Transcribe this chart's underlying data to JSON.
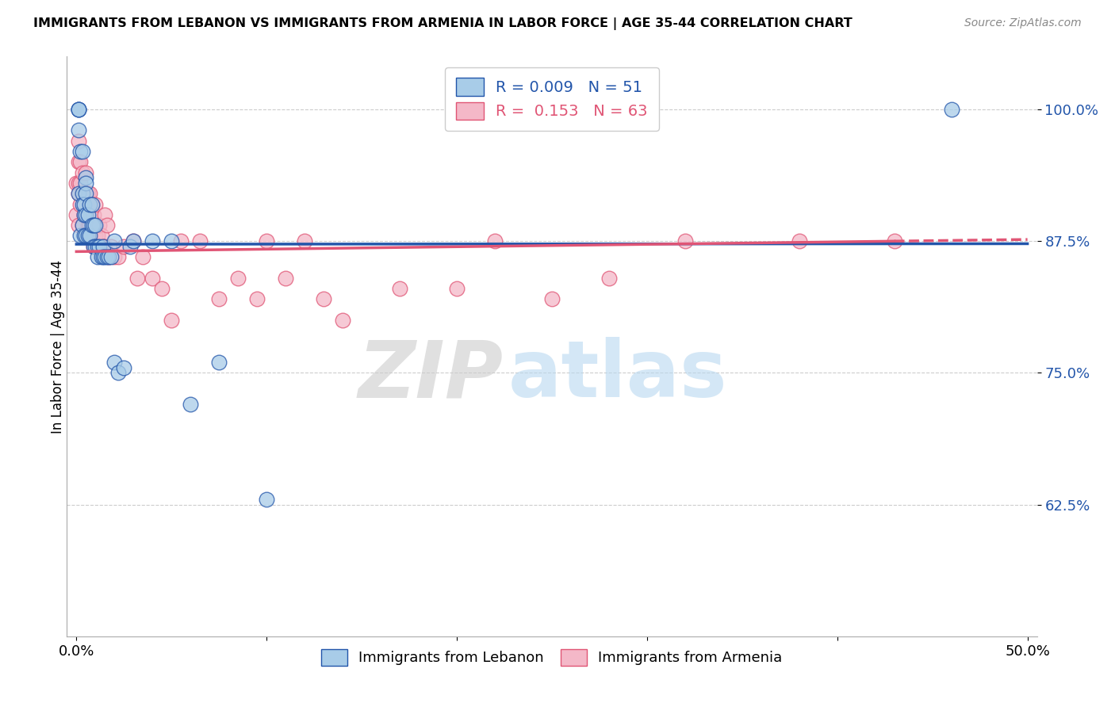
{
  "title": "IMMIGRANTS FROM LEBANON VS IMMIGRANTS FROM ARMENIA IN LABOR FORCE | AGE 35-44 CORRELATION CHART",
  "source": "Source: ZipAtlas.com",
  "ylabel": "In Labor Force | Age 35-44",
  "xlim": [
    -0.005,
    0.505
  ],
  "ylim": [
    0.5,
    1.05
  ],
  "yticks": [
    0.625,
    0.75,
    0.875,
    1.0
  ],
  "ytick_labels": [
    "62.5%",
    "75.0%",
    "87.5%",
    "100.0%"
  ],
  "xticks": [
    0.0,
    0.1,
    0.2,
    0.3,
    0.4,
    0.5
  ],
  "xtick_labels": [
    "0.0%",
    "",
    "",
    "",
    "",
    "50.0%"
  ],
  "watermark_zip": "ZIP",
  "watermark_atlas": "atlas",
  "color_lebanon": "#a8cce8",
  "color_armenia": "#f4b8c8",
  "color_line_lebanon": "#2255aa",
  "color_line_armenia": "#e05575",
  "lebanon_x": [
    0.001,
    0.001,
    0.001,
    0.001,
    0.001,
    0.002,
    0.002,
    0.003,
    0.003,
    0.003,
    0.003,
    0.004,
    0.004,
    0.004,
    0.005,
    0.005,
    0.005,
    0.005,
    0.005,
    0.006,
    0.006,
    0.007,
    0.007,
    0.008,
    0.008,
    0.009,
    0.009,
    0.01,
    0.01,
    0.011,
    0.011,
    0.012,
    0.013,
    0.014,
    0.014,
    0.015,
    0.016,
    0.017,
    0.018,
    0.02,
    0.02,
    0.022,
    0.025,
    0.028,
    0.03,
    0.04,
    0.05,
    0.06,
    0.075,
    0.1,
    0.46
  ],
  "lebanon_y": [
    1.0,
    1.0,
    1.0,
    0.98,
    0.92,
    0.96,
    0.88,
    0.96,
    0.92,
    0.91,
    0.89,
    0.9,
    0.91,
    0.88,
    0.935,
    0.93,
    0.92,
    0.9,
    0.88,
    0.9,
    0.88,
    0.91,
    0.88,
    0.91,
    0.89,
    0.89,
    0.87,
    0.89,
    0.87,
    0.87,
    0.86,
    0.87,
    0.86,
    0.87,
    0.86,
    0.86,
    0.86,
    0.86,
    0.86,
    0.76,
    0.875,
    0.75,
    0.755,
    0.87,
    0.875,
    0.875,
    0.875,
    0.72,
    0.76,
    0.63,
    1.0
  ],
  "armenia_x": [
    0.0,
    0.0,
    0.001,
    0.001,
    0.001,
    0.001,
    0.001,
    0.002,
    0.002,
    0.002,
    0.003,
    0.003,
    0.003,
    0.004,
    0.004,
    0.005,
    0.005,
    0.005,
    0.006,
    0.006,
    0.007,
    0.007,
    0.008,
    0.009,
    0.009,
    0.01,
    0.01,
    0.011,
    0.012,
    0.013,
    0.014,
    0.015,
    0.015,
    0.016,
    0.017,
    0.018,
    0.02,
    0.022,
    0.025,
    0.03,
    0.032,
    0.035,
    0.04,
    0.045,
    0.05,
    0.055,
    0.065,
    0.075,
    0.085,
    0.095,
    0.1,
    0.11,
    0.12,
    0.13,
    0.14,
    0.17,
    0.2,
    0.22,
    0.25,
    0.28,
    0.32,
    0.38,
    0.43
  ],
  "armenia_y": [
    0.93,
    0.9,
    0.97,
    0.95,
    0.93,
    0.92,
    0.89,
    0.95,
    0.93,
    0.91,
    0.94,
    0.92,
    0.89,
    0.92,
    0.9,
    0.94,
    0.92,
    0.88,
    0.92,
    0.89,
    0.92,
    0.89,
    0.91,
    0.9,
    0.87,
    0.91,
    0.88,
    0.88,
    0.89,
    0.88,
    0.87,
    0.9,
    0.87,
    0.89,
    0.86,
    0.87,
    0.86,
    0.86,
    0.87,
    0.875,
    0.84,
    0.86,
    0.84,
    0.83,
    0.8,
    0.875,
    0.875,
    0.82,
    0.84,
    0.82,
    0.875,
    0.84,
    0.875,
    0.82,
    0.8,
    0.83,
    0.83,
    0.875,
    0.82,
    0.84,
    0.875,
    0.875,
    0.875
  ]
}
